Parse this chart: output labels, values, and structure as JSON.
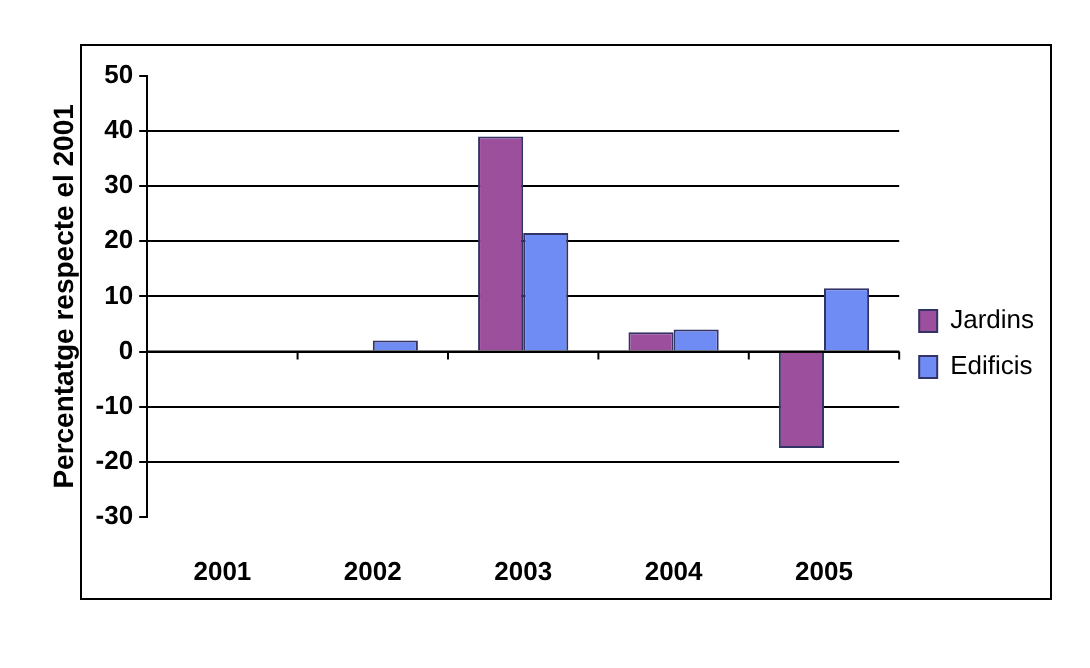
{
  "chart_data": {
    "type": "bar",
    "ylabel": "Percentatge respecte el 2001",
    "categories": [
      "2001",
      "2002",
      "2003",
      "2004",
      "2005"
    ],
    "series": [
      {
        "name": "Jardins",
        "color": "#9c4f9c",
        "values": [
          0,
          0,
          39,
          3.5,
          -17.5
        ]
      },
      {
        "name": "Edificis",
        "color": "#6f8cf5",
        "values": [
          0,
          2,
          21.5,
          4,
          11.5
        ]
      }
    ],
    "ylim": [
      -30,
      50
    ],
    "yticks": [
      -30,
      -20,
      -10,
      0,
      10,
      20,
      30,
      40,
      50
    ],
    "grid": "y",
    "legend": "right"
  }
}
